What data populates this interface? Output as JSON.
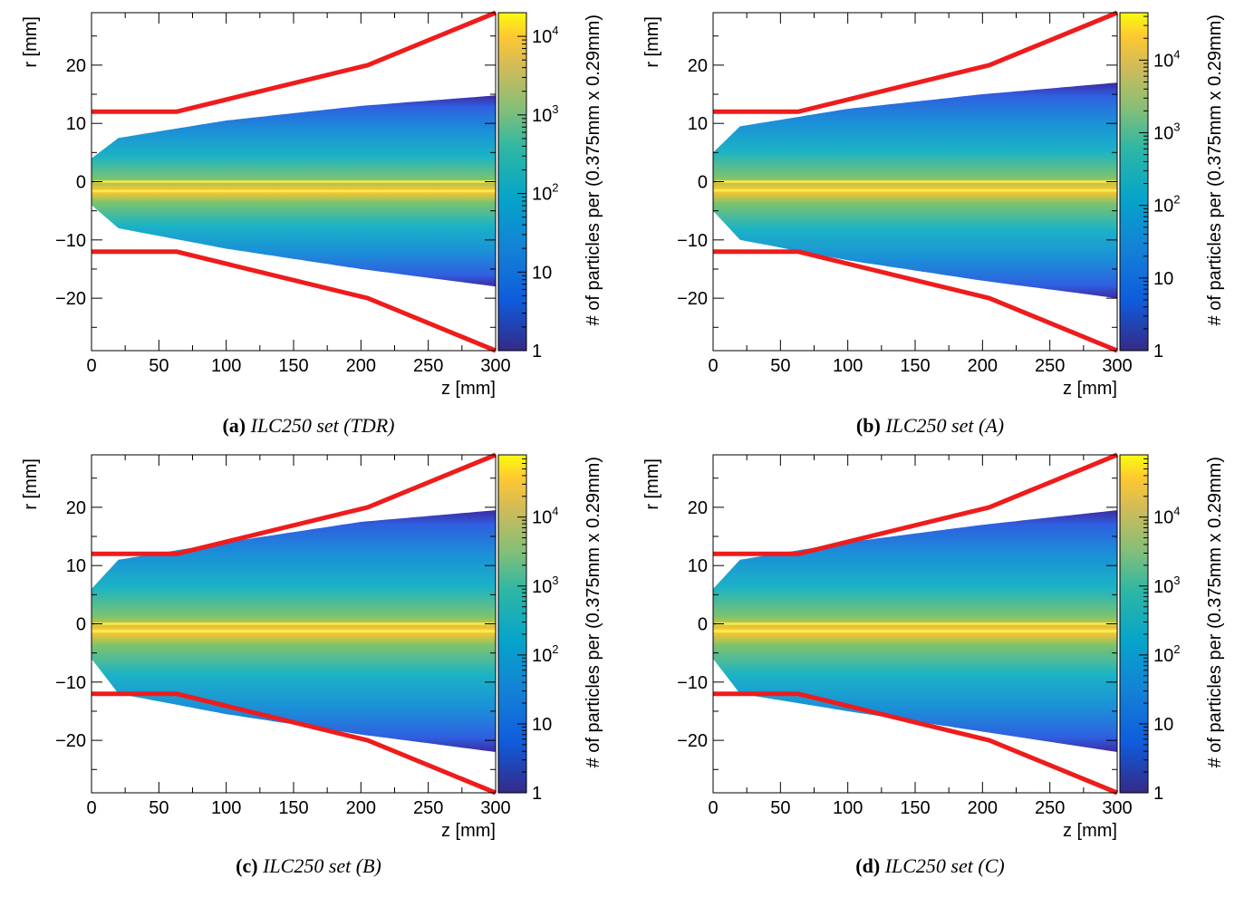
{
  "chart_data": [
    {
      "type": "heatmap",
      "caption_label": "(a)",
      "caption_text": "ILC250 set (TDR)",
      "xlabel": "z [mm]",
      "ylabel": "r [mm]",
      "zlabel": "# of particles per (0.375mm x 0.29mm)",
      "xlim": [
        0,
        300
      ],
      "ylim": [
        -29,
        29
      ],
      "xticks": [
        0,
        50,
        100,
        150,
        200,
        250,
        300
      ],
      "yticks": [
        -20,
        -10,
        0,
        10,
        20
      ],
      "zscale": "log",
      "zlim": [
        1,
        20000
      ],
      "zticks": [
        "1",
        "10",
        "10^2",
        "10^3",
        "10^4"
      ],
      "colormap": "parula",
      "envelope_color": "#ee1c1c",
      "beam_envelope_upper": [
        [
          0,
          4
        ],
        [
          20,
          7.5
        ],
        [
          100,
          10.5
        ],
        [
          200,
          13
        ],
        [
          300,
          14.8
        ]
      ],
      "beam_envelope_lower": [
        [
          0,
          -4
        ],
        [
          20,
          -8
        ],
        [
          100,
          -11.5
        ],
        [
          200,
          -15
        ],
        [
          300,
          -18
        ]
      ],
      "envelope": [
        [
          0,
          12
        ],
        [
          63,
          12
        ],
        [
          205,
          20
        ],
        [
          300,
          29
        ]
      ],
      "envelope_lower": [
        [
          0,
          -12
        ],
        [
          63,
          -12
        ],
        [
          205,
          -20
        ],
        [
          300,
          -29
        ]
      ]
    },
    {
      "type": "heatmap",
      "caption_label": "(b)",
      "caption_text": "ILC250 set (A)",
      "xlabel": "z [mm]",
      "ylabel": "r [mm]",
      "zlabel": "# of particles per (0.375mm x 0.29mm)",
      "xlim": [
        0,
        300
      ],
      "ylim": [
        -29,
        29
      ],
      "xticks": [
        0,
        50,
        100,
        150,
        200,
        250,
        300
      ],
      "yticks": [
        -20,
        -10,
        0,
        10,
        20
      ],
      "zscale": "log",
      "zlim": [
        1,
        45000
      ],
      "zticks": [
        "1",
        "10",
        "10^2",
        "10^3",
        "10^4"
      ],
      "colormap": "parula",
      "envelope_color": "#ee1c1c",
      "beam_envelope_upper": [
        [
          0,
          5
        ],
        [
          20,
          9.5
        ],
        [
          100,
          12.5
        ],
        [
          200,
          15
        ],
        [
          300,
          17
        ]
      ],
      "beam_envelope_lower": [
        [
          0,
          -5
        ],
        [
          20,
          -10
        ],
        [
          100,
          -13.5
        ],
        [
          200,
          -17
        ],
        [
          300,
          -20
        ]
      ],
      "envelope": [
        [
          0,
          12
        ],
        [
          63,
          12
        ],
        [
          205,
          20
        ],
        [
          300,
          29
        ]
      ],
      "envelope_lower": [
        [
          0,
          -12
        ],
        [
          63,
          -12
        ],
        [
          205,
          -20
        ],
        [
          300,
          -29
        ]
      ]
    },
    {
      "type": "heatmap",
      "caption_label": "(c)",
      "caption_text": "ILC250 set (B)",
      "xlabel": "z [mm]",
      "ylabel": "r [mm]",
      "zlabel": "# of particles per (0.375mm x 0.29mm)",
      "xlim": [
        0,
        300
      ],
      "ylim": [
        -29,
        29
      ],
      "xticks": [
        0,
        50,
        100,
        150,
        200,
        250,
        300
      ],
      "yticks": [
        -20,
        -10,
        0,
        10,
        20
      ],
      "zscale": "log",
      "zlim": [
        1,
        80000
      ],
      "zticks": [
        "1",
        "10",
        "10^2",
        "10^3",
        "10^4"
      ],
      "colormap": "parula",
      "envelope_color": "#ee1c1c",
      "beam_envelope_upper": [
        [
          0,
          6
        ],
        [
          20,
          11
        ],
        [
          100,
          14
        ],
        [
          200,
          17.5
        ],
        [
          300,
          19.5
        ]
      ],
      "beam_envelope_lower": [
        [
          0,
          -6
        ],
        [
          20,
          -12
        ],
        [
          100,
          -15.5
        ],
        [
          200,
          -19
        ],
        [
          300,
          -22
        ]
      ],
      "envelope": [
        [
          0,
          12
        ],
        [
          63,
          12
        ],
        [
          205,
          20
        ],
        [
          300,
          29
        ]
      ],
      "envelope_lower": [
        [
          0,
          -12
        ],
        [
          63,
          -12
        ],
        [
          205,
          -20
        ],
        [
          300,
          -29
        ]
      ]
    },
    {
      "type": "heatmap",
      "caption_label": "(d)",
      "caption_text": "ILC250 set (C)",
      "xlabel": "z [mm]",
      "ylabel": "r [mm]",
      "zlabel": "# of particles per (0.375mm x 0.29mm)",
      "xlim": [
        0,
        300
      ],
      "ylim": [
        -29,
        29
      ],
      "xticks": [
        0,
        50,
        100,
        150,
        200,
        250,
        300
      ],
      "yticks": [
        -20,
        -10,
        0,
        10,
        20
      ],
      "zscale": "log",
      "zlim": [
        1,
        80000
      ],
      "zticks": [
        "1",
        "10",
        "10^2",
        "10^3",
        "10^4"
      ],
      "colormap": "parula",
      "envelope_color": "#ee1c1c",
      "beam_envelope_upper": [
        [
          0,
          6
        ],
        [
          20,
          11
        ],
        [
          100,
          14
        ],
        [
          200,
          17
        ],
        [
          300,
          19.5
        ]
      ],
      "beam_envelope_lower": [
        [
          0,
          -6
        ],
        [
          20,
          -12
        ],
        [
          100,
          -15
        ],
        [
          200,
          -18.5
        ],
        [
          300,
          -22
        ]
      ],
      "envelope": [
        [
          0,
          12
        ],
        [
          63,
          12
        ],
        [
          205,
          20
        ],
        [
          300,
          29
        ]
      ],
      "envelope_lower": [
        [
          0,
          -12
        ],
        [
          63,
          -12
        ],
        [
          205,
          -20
        ],
        [
          300,
          -29
        ]
      ]
    }
  ]
}
